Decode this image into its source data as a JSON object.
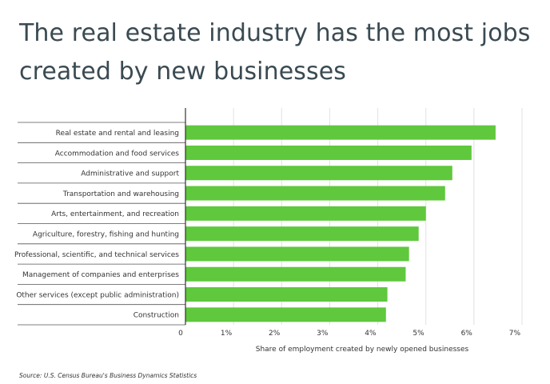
{
  "title": "The real estate industry has the most jobs created by new businesses",
  "source": "Source:  U.S. Census Bureau's Business Dynamics Statistics",
  "chart_data": {
    "type": "bar",
    "orientation": "horizontal",
    "title": "The real estate industry has the most jobs created by new businesses",
    "xlabel": "Share of employment created by newly opened businesses",
    "ylabel": "",
    "xlim": [
      0,
      7
    ],
    "ticks": [
      0,
      1,
      2,
      3,
      4,
      5,
      6,
      7
    ],
    "tick_labels": [
      "0",
      "1%",
      "2%",
      "3%",
      "4%",
      "5%",
      "6%",
      "7%"
    ],
    "categories": [
      "Real estate and rental and leasing",
      "Accommodation and food services",
      "Administrative and support",
      "Transportation and warehousing",
      "Arts, entertainment, and recreation",
      "Agriculture, forestry, fishing and hunting",
      "Professional, scientific, and technical services",
      "Management of companies and enterprises",
      "Other services (except public administration)",
      "Construction"
    ],
    "values": [
      6.45,
      5.95,
      5.55,
      5.4,
      5.0,
      4.85,
      4.65,
      4.58,
      4.2,
      4.17
    ],
    "bar_color": "#5fc83c",
    "grid": true,
    "legend": "none"
  }
}
